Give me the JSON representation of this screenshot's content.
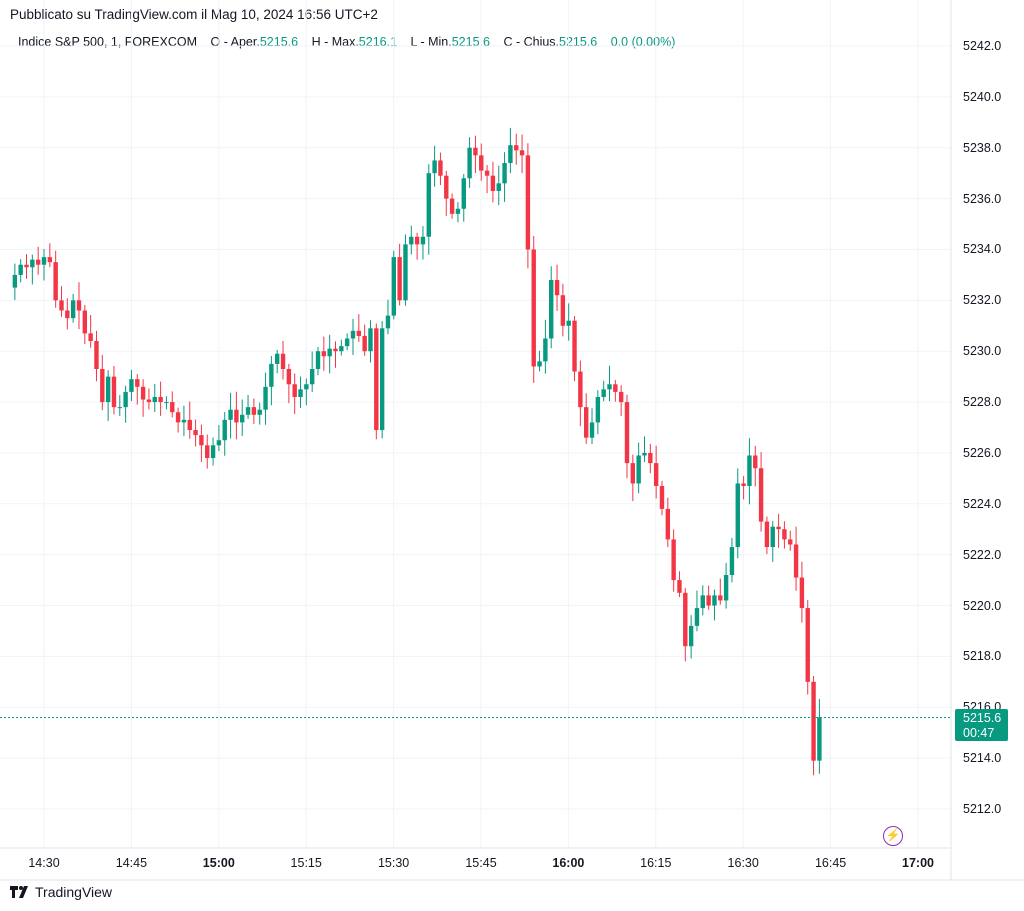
{
  "header": {
    "published": "Pubblicato su TradingView.com il Mag 10, 2024 16:56 UTC+2"
  },
  "legend": {
    "symbol": "Indice S&P 500, 1, FOREXCOM",
    "open_label": "O - Aper.",
    "open_value": "5215.6",
    "high_label": "H - Max.",
    "high_value": "5216.1",
    "low_label": "L - Min.",
    "low_value": "5215.6",
    "close_label": "C - Chius.",
    "close_value": "5215.6",
    "change": "0.0 (0.00%)"
  },
  "price_tag": {
    "price": "5215.6",
    "countdown": "00:47"
  },
  "brand": {
    "name": "TradingView"
  },
  "flash_icon": "lightning-icon",
  "colors": {
    "up": "#089981",
    "down": "#f23645",
    "grid": "#f0f3fa",
    "last_price_line": "#089981"
  },
  "chart_data": {
    "type": "candlestick",
    "interval": "1 minute",
    "y_ticks": [
      "5242.0",
      "5240.0",
      "5238.0",
      "5236.0",
      "5234.0",
      "5232.0",
      "5230.0",
      "5228.0",
      "5226.0",
      "5224.0",
      "5222.0",
      "5220.0",
      "5218.0",
      "5216.0",
      "5214.0",
      "5212.0"
    ],
    "x_ticks": [
      {
        "label": "14:30",
        "bold": false
      },
      {
        "label": "14:45",
        "bold": false
      },
      {
        "label": "15:00",
        "bold": true
      },
      {
        "label": "15:15",
        "bold": false
      },
      {
        "label": "15:30",
        "bold": false
      },
      {
        "label": "15:45",
        "bold": false
      },
      {
        "label": "16:00",
        "bold": true
      },
      {
        "label": "16:15",
        "bold": false
      },
      {
        "label": "16:30",
        "bold": false
      },
      {
        "label": "16:45",
        "bold": false
      },
      {
        "label": "17:00",
        "bold": true
      }
    ],
    "ylim": [
      5210.5,
      5243.2
    ],
    "last_price": 5215.6,
    "closes": [
      5233.0,
      5233.4,
      5233.3,
      5233.6,
      5233.4,
      5233.7,
      5233.5,
      5232.0,
      5231.6,
      5231.3,
      5232.0,
      5231.6,
      5230.7,
      5230.4,
      5229.3,
      5228.0,
      5229.0,
      5227.8,
      5227.8,
      5228.4,
      5228.9,
      5228.6,
      5228.1,
      5228.0,
      5228.2,
      5228.0,
      5228.0,
      5227.6,
      5227.2,
      5227.3,
      5226.9,
      5226.7,
      5226.3,
      5225.8,
      5226.3,
      5226.5,
      5227.3,
      5227.7,
      5227.2,
      5227.5,
      5227.8,
      5227.5,
      5227.7,
      5228.6,
      5229.5,
      5229.9,
      5229.3,
      5228.7,
      5228.2,
      5228.5,
      5228.7,
      5229.3,
      5230.0,
      5229.8,
      5230.1,
      5230.0,
      5230.2,
      5230.5,
      5230.8,
      5230.6,
      5230.0,
      5230.9,
      5226.9,
      5230.9,
      5231.4,
      5233.7,
      5232.0,
      5234.2,
      5234.5,
      5234.2,
      5234.5,
      5237.0,
      5237.5,
      5236.9,
      5236.0,
      5235.4,
      5235.6,
      5236.8,
      5238.0,
      5237.7,
      5237.1,
      5236.9,
      5236.3,
      5236.6,
      5237.4,
      5238.1,
      5237.9,
      5237.7,
      5234.0,
      5229.4,
      5229.6,
      5230.5,
      5232.8,
      5232.2,
      5231.0,
      5231.2,
      5229.2,
      5227.8,
      5226.6,
      5227.2,
      5228.2,
      5228.5,
      5228.7,
      5228.4,
      5228.0,
      5225.6,
      5224.8,
      5225.9,
      5226.0,
      5225.6,
      5224.7,
      5223.8,
      5222.6,
      5221.0,
      5220.5,
      5218.4,
      5219.2,
      5219.9,
      5220.4,
      5220.0,
      5220.4,
      5220.2,
      5221.2,
      5222.3,
      5224.8,
      5224.7,
      5225.9,
      5225.4,
      5223.3,
      5222.3,
      5223.1,
      5223.0,
      5222.6,
      5222.4,
      5221.1,
      5219.9,
      5217.0,
      5213.9,
      5215.6
    ]
  }
}
